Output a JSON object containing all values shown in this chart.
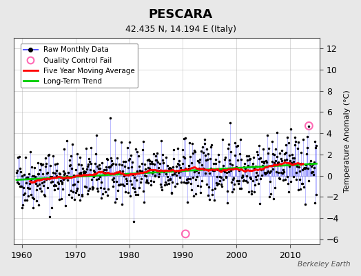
{
  "title": "PESCARA",
  "subtitle": "42.435 N, 14.194 E (Italy)",
  "ylabel": "Temperature Anomaly (°C)",
  "credit": "Berkeley Earth",
  "xlim": [
    1958.5,
    2015.5
  ],
  "ylim": [
    -6.5,
    13
  ],
  "yticks": [
    -6,
    -4,
    -2,
    0,
    2,
    4,
    6,
    8,
    10,
    12
  ],
  "xticks": [
    1960,
    1970,
    1980,
    1990,
    2000,
    2010
  ],
  "background_color": "#e8e8e8",
  "plot_bg_color": "#ffffff",
  "raw_line_color": "#5555ff",
  "raw_dot_color": "#000000",
  "moving_avg_color": "#ff0000",
  "trend_color": "#00cc00",
  "qc_fail_color": "#ff69b4",
  "seed": 42
}
